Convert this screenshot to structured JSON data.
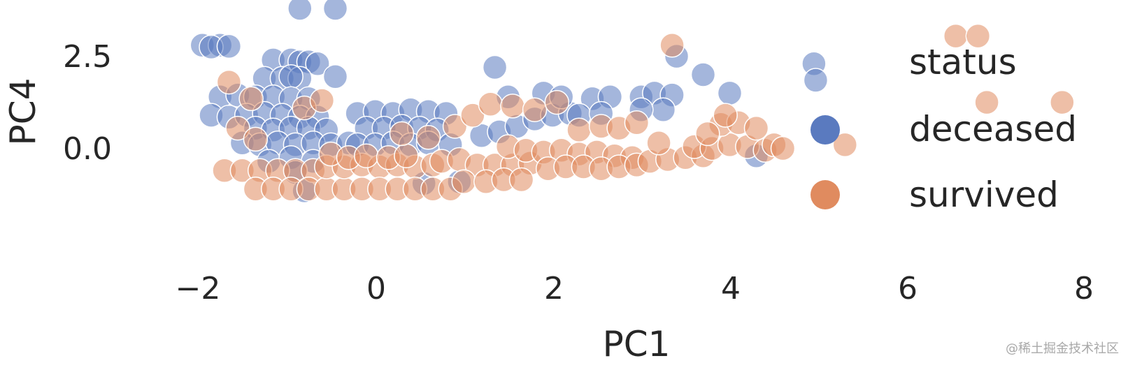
{
  "chart_data": {
    "type": "scatter",
    "xlabel": "PC1",
    "ylabel": "PC4",
    "xlim": [
      -2.35,
      8.05
    ],
    "ylim": [
      -1.55,
      3.85
    ],
    "x_ticks": [
      -2,
      0,
      2,
      4,
      6,
      8
    ],
    "y_ticks": [
      0.0,
      2.5
    ],
    "x_tick_labels": [
      "−2",
      "0",
      "2",
      "4",
      "6",
      "8"
    ],
    "y_tick_labels": [
      "0.0",
      "2.5"
    ],
    "grid": false,
    "legend": {
      "title": "status",
      "placement": "right",
      "entries": [
        "deceased",
        "survived"
      ]
    },
    "colors": {
      "deceased": "#5a7abf",
      "survived": "#e08b5f"
    },
    "series": [
      {
        "name": "deceased",
        "points": [
          [
            -0.85,
            3.75
          ],
          [
            -0.45,
            3.75
          ],
          [
            -1.95,
            2.75
          ],
          [
            -1.75,
            2.75
          ],
          [
            -1.85,
            2.7
          ],
          [
            -1.65,
            2.72
          ],
          [
            -1.15,
            2.35
          ],
          [
            -0.95,
            2.35
          ],
          [
            -0.85,
            2.3
          ],
          [
            -0.75,
            2.3
          ],
          [
            -0.65,
            2.25
          ],
          [
            -1.25,
            1.85
          ],
          [
            -1.05,
            1.85
          ],
          [
            -0.85,
            1.85
          ],
          [
            -0.95,
            1.9
          ],
          [
            -0.45,
            1.9
          ],
          [
            -1.75,
            1.35
          ],
          [
            -1.55,
            1.4
          ],
          [
            -1.35,
            1.35
          ],
          [
            -1.15,
            1.35
          ],
          [
            -0.95,
            1.3
          ],
          [
            -0.75,
            1.3
          ],
          [
            -1.85,
            0.85
          ],
          [
            -1.65,
            0.8
          ],
          [
            -1.45,
            0.85
          ],
          [
            -1.25,
            0.9
          ],
          [
            -1.05,
            0.85
          ],
          [
            -0.85,
            0.8
          ],
          [
            -0.65,
            0.8
          ],
          [
            -1.35,
            0.5
          ],
          [
            -1.15,
            0.45
          ],
          [
            -0.95,
            0.5
          ],
          [
            -0.75,
            0.5
          ],
          [
            -0.55,
            0.45
          ],
          [
            -1.5,
            0.1
          ],
          [
            -1.3,
            0.05
          ],
          [
            -1.1,
            0.1
          ],
          [
            -0.9,
            0.05
          ],
          [
            -0.7,
            0.1
          ],
          [
            -0.5,
            0.05
          ],
          [
            -0.3,
            0.1
          ],
          [
            -1.2,
            -0.4
          ],
          [
            -0.95,
            -0.3
          ],
          [
            -0.7,
            -0.4
          ],
          [
            -0.9,
            -0.7
          ],
          [
            -0.8,
            -1.2
          ],
          [
            -0.2,
            0.9
          ],
          [
            0.0,
            0.95
          ],
          [
            0.2,
            0.9
          ],
          [
            0.4,
            1.0
          ],
          [
            0.6,
            0.95
          ],
          [
            0.8,
            0.9
          ],
          [
            -0.1,
            0.5
          ],
          [
            0.1,
            0.5
          ],
          [
            0.3,
            0.55
          ],
          [
            0.5,
            0.5
          ],
          [
            0.7,
            0.45
          ],
          [
            -0.2,
            0.05
          ],
          [
            0.0,
            0.05
          ],
          [
            0.2,
            0.1
          ],
          [
            0.4,
            0.05
          ],
          [
            0.6,
            0.1
          ],
          [
            0.85,
            0.05
          ],
          [
            0.55,
            -1.0
          ],
          [
            0.95,
            -0.95
          ],
          [
            1.2,
            0.3
          ],
          [
            1.4,
            0.4
          ],
          [
            1.6,
            0.55
          ],
          [
            1.8,
            0.75
          ],
          [
            2.0,
            0.85
          ],
          [
            2.2,
            0.9
          ],
          [
            1.5,
            1.35
          ],
          [
            1.9,
            1.45
          ],
          [
            2.1,
            1.35
          ],
          [
            2.45,
            1.3
          ],
          [
            2.65,
            1.35
          ],
          [
            2.3,
            0.85
          ],
          [
            2.55,
            0.9
          ],
          [
            1.35,
            2.15
          ],
          [
            3.0,
            1.35
          ],
          [
            3.15,
            1.45
          ],
          [
            3.35,
            1.4
          ],
          [
            3.25,
            1.0
          ],
          [
            3.0,
            1.0
          ],
          [
            3.4,
            2.45
          ],
          [
            3.7,
            1.95
          ],
          [
            4.0,
            1.45
          ],
          [
            4.3,
            -0.25
          ],
          [
            4.95,
            2.25
          ],
          [
            4.97,
            1.8
          ]
        ]
      },
      {
        "name": "survived",
        "points": [
          [
            3.35,
            2.75
          ],
          [
            6.55,
            3.0
          ],
          [
            6.8,
            3.0
          ],
          [
            6.9,
            1.2
          ],
          [
            7.75,
            1.2
          ],
          [
            -1.65,
            1.75
          ],
          [
            -1.4,
            1.3
          ],
          [
            -1.55,
            0.5
          ],
          [
            -1.35,
            0.2
          ],
          [
            -1.7,
            -0.65
          ],
          [
            -1.5,
            -0.65
          ],
          [
            -1.3,
            -0.65
          ],
          [
            -1.1,
            -0.65
          ],
          [
            -0.9,
            -0.65
          ],
          [
            -0.7,
            -0.65
          ],
          [
            -1.35,
            -1.15
          ],
          [
            -1.15,
            -1.15
          ],
          [
            -0.95,
            -1.15
          ],
          [
            -0.75,
            -1.15
          ],
          [
            -0.55,
            -1.15
          ],
          [
            -0.35,
            -1.15
          ],
          [
            -0.55,
            -0.55
          ],
          [
            -0.35,
            -0.55
          ],
          [
            -0.15,
            -0.5
          ],
          [
            0.05,
            -0.55
          ],
          [
            0.25,
            -0.5
          ],
          [
            0.45,
            -0.55
          ],
          [
            0.65,
            -0.5
          ],
          [
            -0.15,
            -1.15
          ],
          [
            0.05,
            -1.15
          ],
          [
            0.25,
            -1.15
          ],
          [
            0.45,
            -1.15
          ],
          [
            0.65,
            -1.15
          ],
          [
            0.85,
            -1.15
          ],
          [
            -0.5,
            -0.2
          ],
          [
            -0.3,
            -0.3
          ],
          [
            -0.1,
            -0.25
          ],
          [
            0.15,
            -0.3
          ],
          [
            0.35,
            -0.25
          ],
          [
            0.75,
            -0.4
          ],
          [
            0.95,
            -0.35
          ],
          [
            1.15,
            -0.5
          ],
          [
            1.35,
            -0.5
          ],
          [
            1.55,
            -0.5
          ],
          [
            1.75,
            -0.45
          ],
          [
            1.0,
            -0.95
          ],
          [
            1.25,
            -0.95
          ],
          [
            1.45,
            -0.9
          ],
          [
            1.65,
            -0.9
          ],
          [
            1.5,
            0.0
          ],
          [
            1.7,
            -0.1
          ],
          [
            1.9,
            -0.15
          ],
          [
            2.1,
            -0.1
          ],
          [
            2.3,
            -0.2
          ],
          [
            2.5,
            -0.15
          ],
          [
            2.7,
            -0.25
          ],
          [
            2.9,
            -0.3
          ],
          [
            1.95,
            -0.6
          ],
          [
            2.15,
            -0.55
          ],
          [
            2.35,
            -0.55
          ],
          [
            2.55,
            -0.6
          ],
          [
            2.75,
            -0.55
          ],
          [
            2.95,
            -0.5
          ],
          [
            3.1,
            -0.4
          ],
          [
            3.3,
            -0.35
          ],
          [
            3.5,
            -0.3
          ],
          [
            3.7,
            -0.25
          ],
          [
            3.2,
            0.1
          ],
          [
            3.6,
            0.0
          ],
          [
            3.8,
            -0.05
          ],
          [
            4.0,
            0.05
          ],
          [
            4.2,
            0.0
          ],
          [
            4.4,
            -0.1
          ],
          [
            2.3,
            0.45
          ],
          [
            2.55,
            0.55
          ],
          [
            2.75,
            0.5
          ],
          [
            2.95,
            0.65
          ],
          [
            3.9,
            0.6
          ],
          [
            4.1,
            0.65
          ],
          [
            4.3,
            0.5
          ],
          [
            3.95,
            0.85
          ],
          [
            3.75,
            0.35
          ],
          [
            4.5,
            0.05
          ],
          [
            4.6,
            -0.05
          ],
          [
            5.3,
            0.05
          ],
          [
            0.3,
            0.35
          ],
          [
            0.6,
            0.25
          ],
          [
            0.9,
            0.55
          ],
          [
            1.1,
            0.85
          ],
          [
            1.3,
            1.15
          ],
          [
            1.55,
            1.1
          ],
          [
            1.8,
            1.0
          ],
          [
            2.05,
            1.2
          ],
          [
            -0.8,
            1.05
          ],
          [
            -0.6,
            1.25
          ]
        ]
      }
    ]
  },
  "watermark": "@稀土掘金技术社区"
}
